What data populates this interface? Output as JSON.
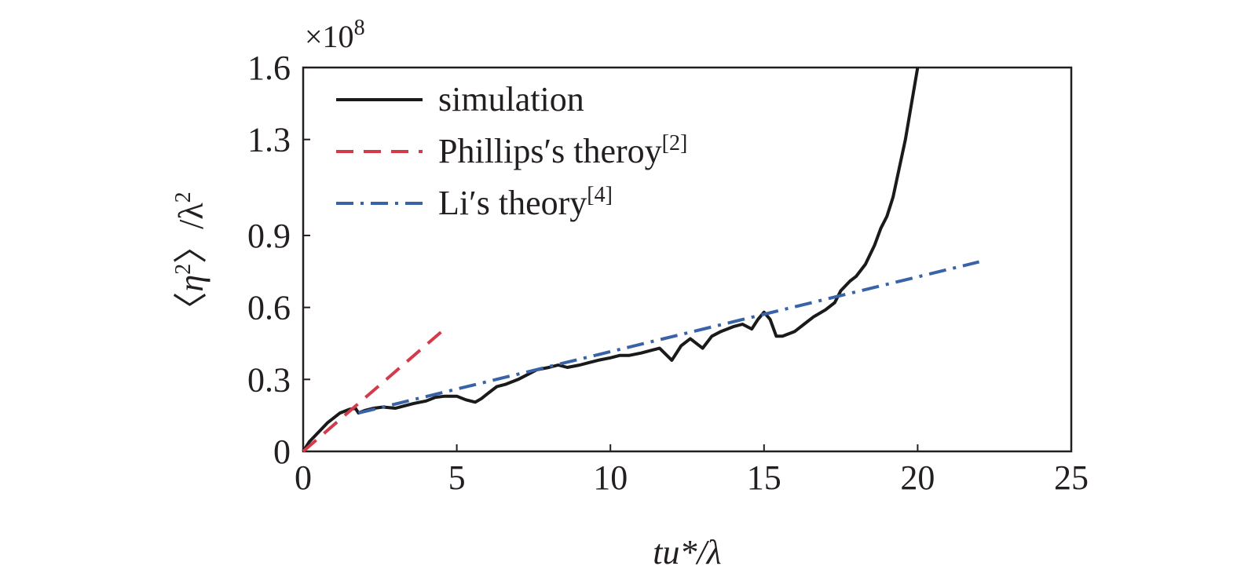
{
  "chart_data": {
    "type": "line",
    "title": "",
    "multiplier": {
      "base": "×10",
      "exponent": "8"
    },
    "xlabel": "tu*/λ",
    "ylabel": {
      "open": "〈",
      "symbol": "η",
      "symbol_exp": "2",
      "close": "〉/λ",
      "close_exp": "2"
    },
    "xlim": [
      0,
      25
    ],
    "ylim": [
      0,
      1.6
    ],
    "x_ticks": [
      0,
      5,
      10,
      15,
      20,
      25
    ],
    "y_ticks": [
      0,
      0.3,
      0.6,
      0.9,
      1.3,
      1.6
    ],
    "x_tick_labels": [
      "0",
      "5",
      "10",
      "15",
      "20",
      "25"
    ],
    "y_tick_labels": [
      "0",
      "0.3",
      "0.6",
      "0.9",
      "1.3",
      "1.6"
    ],
    "grid": false,
    "legend_position": "top-left",
    "series": [
      {
        "name": "simulation",
        "label_sup": "",
        "color": "#1a1a1a",
        "style": "solid",
        "x": [
          0,
          0.2,
          0.5,
          0.8,
          1.0,
          1.2,
          1.5,
          1.7,
          1.8,
          2.0,
          2.3,
          2.6,
          3.0,
          3.3,
          3.6,
          4.0,
          4.3,
          4.6,
          5.0,
          5.3,
          5.6,
          5.8,
          6.0,
          6.3,
          6.6,
          7.0,
          7.3,
          7.6,
          8.0,
          8.3,
          8.6,
          9.0,
          9.3,
          9.6,
          10.0,
          10.3,
          10.6,
          11.0,
          11.3,
          11.6,
          12.0,
          12.3,
          12.6,
          13.0,
          13.3,
          13.6,
          14.0,
          14.3,
          14.6,
          14.8,
          15.0,
          15.2,
          15.4,
          15.6,
          16.0,
          16.3,
          16.6,
          17.0,
          17.3,
          17.5,
          17.8,
          18.0,
          18.3,
          18.6,
          18.8,
          19.0,
          19.2,
          19.4,
          19.6,
          19.8,
          20.0
        ],
        "y": [
          0.0,
          0.04,
          0.08,
          0.12,
          0.14,
          0.16,
          0.175,
          0.18,
          0.16,
          0.17,
          0.18,
          0.185,
          0.18,
          0.19,
          0.2,
          0.21,
          0.225,
          0.23,
          0.23,
          0.215,
          0.205,
          0.22,
          0.24,
          0.27,
          0.28,
          0.3,
          0.32,
          0.34,
          0.35,
          0.36,
          0.35,
          0.36,
          0.37,
          0.38,
          0.39,
          0.4,
          0.4,
          0.41,
          0.42,
          0.43,
          0.38,
          0.44,
          0.47,
          0.43,
          0.48,
          0.5,
          0.52,
          0.53,
          0.51,
          0.55,
          0.58,
          0.55,
          0.48,
          0.48,
          0.5,
          0.53,
          0.56,
          0.59,
          0.62,
          0.67,
          0.71,
          0.73,
          0.78,
          0.86,
          0.93,
          0.98,
          1.06,
          1.18,
          1.3,
          1.45,
          1.6
        ]
      },
      {
        "name": "Phillips′s theroy",
        "label_sup": "[2]",
        "color": "#d33b4b",
        "style": "dashed",
        "x": [
          0,
          4.6
        ],
        "y": [
          0,
          0.51
        ]
      },
      {
        "name": "Li′s theory",
        "label_sup": "[4]",
        "color": "#3a62a7",
        "style": "dashdot",
        "x": [
          1.8,
          22.0
        ],
        "y": [
          0.16,
          0.79
        ]
      }
    ]
  }
}
